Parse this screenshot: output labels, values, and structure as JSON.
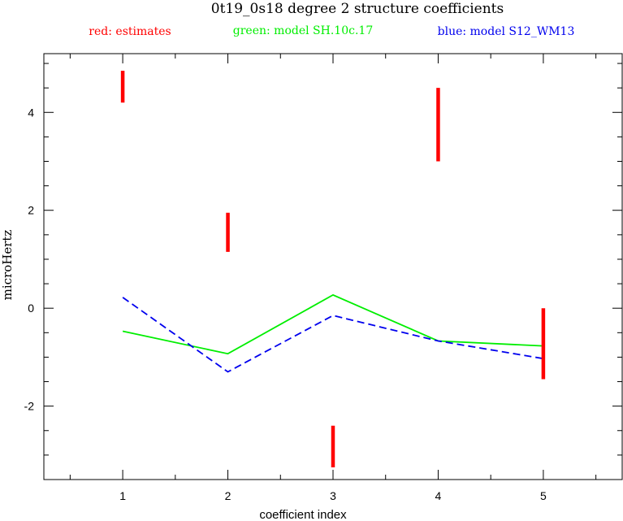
{
  "chart_data": {
    "type": "line",
    "title": "0t19_0s18 degree 2 structure coefficients",
    "legend": {
      "red": "red: estimates",
      "green": "green: model SH.10c.17",
      "blue": "blue: model S12_WM13"
    },
    "xlabel": "coefficient index",
    "ylabel": "microHertz",
    "xlim": [
      0.25,
      5.75
    ],
    "ylim": [
      -3.5,
      5.2
    ],
    "x_ticks": [
      1,
      2,
      3,
      4,
      5
    ],
    "y_ticks": [
      -2,
      0,
      2,
      4
    ],
    "estimates": [
      {
        "x": 1,
        "low": 4.2,
        "high": 4.85
      },
      {
        "x": 2,
        "low": 1.15,
        "high": 1.95
      },
      {
        "x": 3,
        "low": -3.25,
        "high": -2.4
      },
      {
        "x": 4,
        "low": 3.0,
        "high": 4.5
      },
      {
        "x": 5,
        "low": -1.45,
        "high": 0.0
      }
    ],
    "series": [
      {
        "name": "model SH.10c.17",
        "color": "#00ee00",
        "dash": "solid",
        "x": [
          1,
          2,
          3,
          4,
          5
        ],
        "values": [
          -0.47,
          -0.93,
          0.27,
          -0.67,
          -0.77
        ]
      },
      {
        "name": "model S12_WM13",
        "color": "#0000ee",
        "dash": "dashed",
        "x": [
          1,
          2,
          3,
          4,
          5
        ],
        "values": [
          0.22,
          -1.3,
          -0.15,
          -0.67,
          -1.03
        ]
      }
    ],
    "colors": {
      "estimates": "#ff0000",
      "axes": "#000000"
    },
    "grid": false
  }
}
